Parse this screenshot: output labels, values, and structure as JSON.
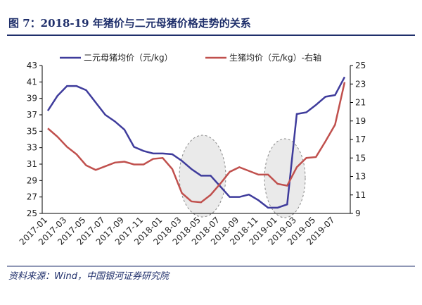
{
  "chart_data": {
    "type": "line",
    "title": "图 7：2018-19 年猪价与二元母猪价格走势的关系",
    "source": "资料来源：Wind，中国银河证券研究院",
    "categories": [
      "2017-01",
      null,
      "2017-03",
      null,
      "2017-05",
      null,
      "2017-07",
      null,
      "2017-09",
      null,
      "2017-11",
      null,
      "2018-01",
      null,
      "2018-03",
      null,
      "2018-05",
      null,
      "2018-07",
      null,
      "2018-09",
      null,
      "2018-11",
      null,
      "2019-01",
      null,
      "2019-03",
      null,
      "2019-05",
      null,
      "2019-07",
      null
    ],
    "series": [
      {
        "name": "二元母猪均价（元/kg）",
        "color": "#3f3c9c",
        "values": [
          37.5,
          39.3,
          40.5,
          40.5,
          40.0,
          38.5,
          37.0,
          36.2,
          35.2,
          33.1,
          32.6,
          32.3,
          32.3,
          32.2,
          31.4,
          30.4,
          29.6,
          29.6,
          28.3,
          27.0,
          27.0,
          27.3,
          26.6,
          25.7,
          25.7,
          26.1,
          37.1,
          37.3,
          38.2,
          39.2,
          39.4,
          41.6
        ]
      },
      {
        "name": "生猪均价（元/kg）-右轴",
        "color": "#c0504d",
        "axis": "y2",
        "values": [
          18.2,
          17.3,
          16.2,
          15.4,
          14.2,
          13.7,
          14.1,
          14.5,
          14.6,
          14.3,
          14.3,
          14.9,
          15.0,
          13.8,
          11.2,
          10.3,
          10.2,
          11.0,
          12.2,
          13.5,
          14.0,
          13.6,
          13.2,
          13.2,
          12.2,
          12.0,
          14.0,
          15.0,
          15.1,
          16.8,
          18.6,
          23.2
        ]
      }
    ],
    "ylim": [
      25,
      43
    ],
    "yticks": [
      25,
      27,
      29,
      31,
      33,
      35,
      37,
      39,
      41,
      43
    ],
    "y2lim": [
      9,
      25
    ],
    "y2ticks": [
      9,
      11,
      13,
      15,
      17,
      19,
      21,
      23,
      25
    ]
  }
}
